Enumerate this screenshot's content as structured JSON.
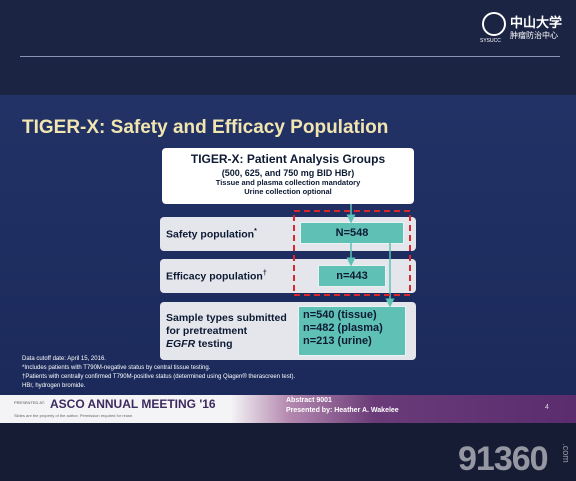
{
  "header": {
    "logo_title": "中山大学",
    "logo_subtitle": "肿瘤防治中心",
    "logo_small": "SYSUCC"
  },
  "slide": {
    "title": "TIGER-X: Safety and Efficacy Population",
    "groups_box": {
      "title": "TIGER-X: Patient Analysis Groups",
      "dose": "(500, 625, and 750 mg BID HBr)",
      "notes": [
        "Tissue and plasma collection mandatory",
        "Urine collection optional"
      ]
    },
    "safety": {
      "label": "Safety population",
      "marker": "*",
      "value": "N=548"
    },
    "efficacy": {
      "label": "Efficacy population",
      "marker": "†",
      "value": "n=443"
    },
    "samples": {
      "label_lines": [
        "Sample types submitted",
        "for pretreatment"
      ],
      "label_italic": "EGFR",
      "label_rest": " testing",
      "values": [
        "n=540 (tissue)",
        "n=482 (plasma)",
        "n=213 (urine)"
      ]
    },
    "footnotes": [
      "Data cutoff date: April 15, 2016.",
      "*Includes patients with T790M-negative status by central tissue testing.",
      "†Patients with centrally confirmed T790M-positive status (determined using Qiagen® therascreen test).",
      "HBr, hydrogen bromide."
    ]
  },
  "footer": {
    "presented_at": "PRESENTED AT:",
    "meeting": "ASCO ANNUAL MEETING '16",
    "note": "Slides are the property of the author. Permission required for reuse.",
    "abstract": "Abstract 9001",
    "presenter": "Presented by: Heather A. Wakelee",
    "page": "4"
  },
  "watermark": {
    "number": "91360",
    "domain": ".com"
  }
}
